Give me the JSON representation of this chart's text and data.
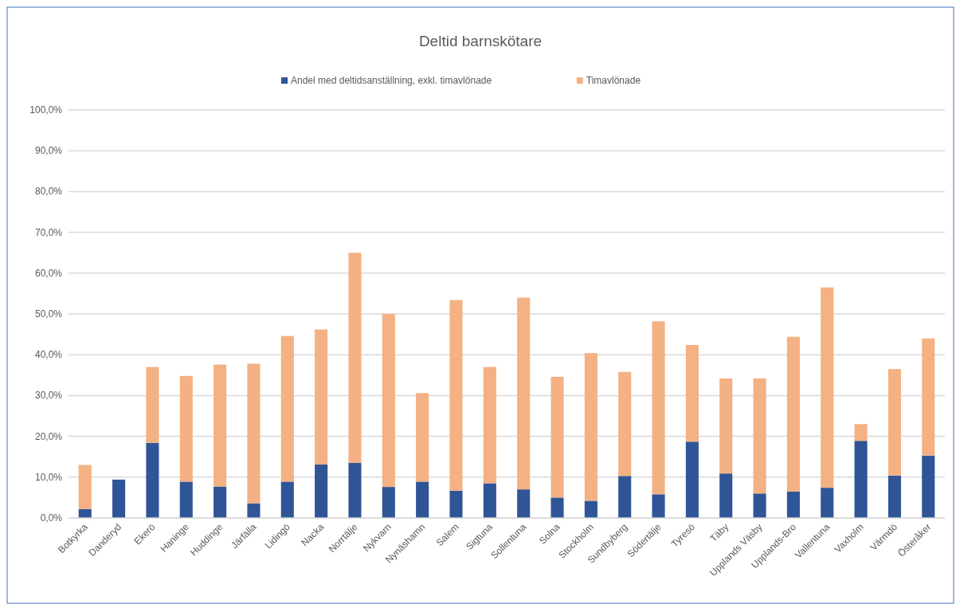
{
  "chart_data": {
    "type": "bar",
    "title": "Deltid barnskötare",
    "stacked": true,
    "legend": "top",
    "grid": "y",
    "categories": [
      "Botkyrka",
      "Danderyd",
      "Ekerö",
      "Haninge",
      "Huddinge",
      "Järfälla",
      "Lidingö",
      "Nacka",
      "Norrtälje",
      "Nykvarn",
      "Nynäshamn",
      "Salem",
      "Sigtuna",
      "Sollentuna",
      "Solna",
      "Stockholm",
      "Sundbyberg",
      "Södertälje",
      "Tyresö",
      "Täby",
      "Upplands Väsby",
      "Upplands-Bro",
      "Vallentuna",
      "Vaxholm",
      "Värmdö",
      "Österåker"
    ],
    "series": [
      {
        "name": "Andel med deltidsanställning, exkl. timavlönade",
        "color": "#2f5597",
        "values": [
          2.2,
          9.4,
          18.4,
          8.9,
          7.7,
          3.6,
          8.9,
          13.1,
          13.5,
          7.6,
          8.9,
          6.7,
          8.5,
          7.0,
          5.0,
          4.2,
          10.3,
          5.8,
          18.7,
          10.9,
          6.0,
          6.5,
          7.4,
          18.9,
          10.4,
          15.3
        ]
      },
      {
        "name": "Timavlönade",
        "color": "#f4b183",
        "values": [
          10.8,
          0,
          18.6,
          25.9,
          29.9,
          34.2,
          35.7,
          33.1,
          51.5,
          42.4,
          21.7,
          46.7,
          28.5,
          47.0,
          29.6,
          36.2,
          25.5,
          42.4,
          23.7,
          23.3,
          28.2,
          37.9,
          49.1,
          4.1,
          26.1,
          28.7
        ]
      }
    ],
    "ylim": [
      0,
      100
    ],
    "yticks": [
      {
        "value": 0,
        "label": "0,0%"
      },
      {
        "value": 10,
        "label": "10,0%"
      },
      {
        "value": 20,
        "label": "20,0%"
      },
      {
        "value": 30,
        "label": "30,0%"
      },
      {
        "value": 40,
        "label": "40,0%"
      },
      {
        "value": 50,
        "label": "50,0%"
      },
      {
        "value": 60,
        "label": "60,0%"
      },
      {
        "value": 70,
        "label": "70,0%"
      },
      {
        "value": 80,
        "label": "80,0%"
      },
      {
        "value": 90,
        "label": "90,0%"
      },
      {
        "value": 100,
        "label": "100,0%"
      }
    ]
  }
}
